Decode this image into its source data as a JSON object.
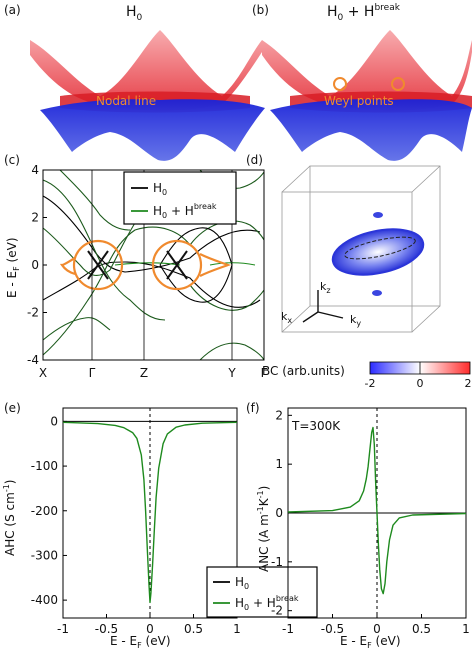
{
  "colors": {
    "red": "#e8333a",
    "blue": "#1f2fd0",
    "orange": "#f08a2e",
    "green": "#1e8a1e",
    "dark_green": "#1c5a1c",
    "black": "#000000"
  },
  "panels": {
    "a": {
      "tag": "(a)",
      "title": "H",
      "title_sub": "0",
      "label": "Nodal line"
    },
    "b": {
      "tag": "(b)",
      "title_pre": "H",
      "title_sub": "0",
      "title_mid": " + H",
      "title_sup": "break",
      "label": "Weyl points"
    },
    "c": {
      "tag": "(c)"
    },
    "d": {
      "tag": "(d)",
      "kz": "k",
      "kz_sub": "z",
      "kx": "k",
      "kx_sub": "x",
      "ky": "k",
      "ky_sub": "y",
      "colorbar_label": "BC (arb.units)",
      "colorbar_ticks": [
        "-2",
        "0",
        "2"
      ]
    },
    "e": {
      "tag": "(e)"
    },
    "f": {
      "tag": "(f)",
      "annotation": "T=300K"
    }
  },
  "legend": {
    "h0": "H",
    "h0_sub": "0",
    "hb_pre": "H",
    "hb_sub": "0",
    "hb_mid": " + H",
    "hb_sup": "break"
  },
  "chart_data": [
    {
      "panel": "c",
      "type": "line",
      "ylabel": "E - E",
      "ylabel_sub": "F",
      "ylabel_unit": " (eV)",
      "xticks": [
        "X",
        "Γ",
        "Z",
        "Y",
        "Γ"
      ],
      "ylim": [
        -4,
        4
      ],
      "yticks": [
        "4",
        "2",
        "0",
        "-2",
        "-4"
      ],
      "legend_position": "top-right",
      "series": [
        {
          "name": "H0",
          "color": "#000000"
        },
        {
          "name": "H0 + Hbreak",
          "color": "#1e8a1e"
        }
      ]
    },
    {
      "panel": "e",
      "type": "line",
      "ylabel": "AHC (S cm",
      "ylabel_sup": "-1",
      "ylabel_end": ")",
      "xlabel": "E - E",
      "xlabel_sub": "F",
      "xlabel_unit": " (eV)",
      "xlim": [
        -1,
        1
      ],
      "ylim": [
        -440,
        30
      ],
      "xticks": [
        "-1",
        "-0.5",
        "0",
        "0.5",
        "1"
      ],
      "yticks": [
        "0",
        "-100",
        "-200",
        "-300",
        "-400"
      ],
      "series": [
        {
          "name": "H0",
          "color": "#000000",
          "x": [
            -1,
            1
          ],
          "y": [
            0,
            0
          ]
        },
        {
          "name": "H0 + Hbreak",
          "color": "#1e8a1e",
          "x": [
            -1,
            -0.6,
            -0.4,
            -0.3,
            -0.2,
            -0.15,
            -0.1,
            -0.07,
            -0.05,
            -0.03,
            -0.01,
            0.0,
            0.01,
            0.03,
            0.05,
            0.07,
            0.1,
            0.15,
            0.2,
            0.3,
            0.4,
            0.6,
            1
          ],
          "y": [
            -2,
            -5,
            -9,
            -14,
            -25,
            -38,
            -75,
            -130,
            -200,
            -290,
            -370,
            -405,
            -385,
            -320,
            -240,
            -170,
            -105,
            -50,
            -28,
            -13,
            -8,
            -4,
            -2
          ]
        }
      ]
    },
    {
      "panel": "f",
      "type": "line",
      "ylabel": "ANC (A m",
      "ylabel_sup1": "-1",
      "ylabel_mid": "K",
      "ylabel_sup2": "-1",
      "ylabel_end": ")",
      "xlabel": "E - E",
      "xlabel_sub": "F",
      "xlabel_unit": " (eV)",
      "xlim": [
        -1,
        1
      ],
      "ylim": [
        -2.15,
        2.15
      ],
      "xticks": [
        "-1",
        "-0.5",
        "0",
        "0.5",
        "1"
      ],
      "yticks": [
        "2",
        "1",
        "0",
        "-1",
        "-2"
      ],
      "annotation": "T=300K",
      "series": [
        {
          "name": "H0",
          "color": "#000000",
          "x": [
            -1,
            1
          ],
          "y": [
            0,
            0
          ]
        },
        {
          "name": "H0 + Hbreak",
          "color": "#1e8a1e",
          "x": [
            -1,
            -0.5,
            -0.3,
            -0.2,
            -0.15,
            -0.12,
            -0.1,
            -0.08,
            -0.06,
            -0.045,
            -0.03,
            -0.015,
            0.0,
            0.015,
            0.03,
            0.05,
            0.07,
            0.09,
            0.11,
            0.14,
            0.18,
            0.25,
            0.4,
            1
          ],
          "y": [
            0.02,
            0.05,
            0.12,
            0.25,
            0.45,
            0.7,
            0.95,
            1.3,
            1.65,
            1.75,
            1.4,
            0.6,
            0.0,
            -0.6,
            -1.15,
            -1.55,
            -1.65,
            -1.45,
            -1.0,
            -0.55,
            -0.25,
            -0.1,
            -0.04,
            -0.01
          ]
        }
      ]
    }
  ]
}
